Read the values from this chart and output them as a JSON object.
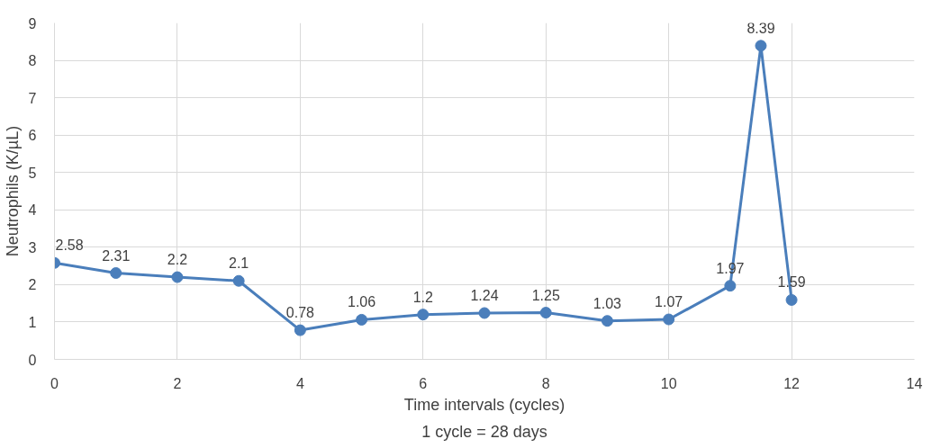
{
  "chart_data": {
    "type": "line",
    "xlabel": "Time intervals (cycles)",
    "ylabel": "Neutrophils (K/µL)",
    "annotations": [
      "1 cycle = 28 days"
    ],
    "x": [
      0,
      1,
      2,
      3,
      4,
      5,
      6,
      7,
      8,
      9,
      10,
      11,
      11.5,
      12
    ],
    "series": [
      {
        "color": "#4a7ebb",
        "values": [
          2.58,
          2.31,
          2.2,
          2.1,
          0.78,
          1.06,
          1.2,
          1.24,
          1.25,
          1.03,
          1.07,
          1.97,
          8.39,
          1.59
        ]
      }
    ],
    "xlim": [
      0,
      14
    ],
    "xticks": [
      0,
      2,
      4,
      6,
      8,
      10,
      12,
      14
    ],
    "ylim": [
      0,
      9
    ],
    "yticks": [
      0,
      1,
      2,
      3,
      4,
      5,
      6,
      7,
      8,
      9
    ],
    "grid": true,
    "marker": "circle",
    "line_style": "solid",
    "data_labels": true
  }
}
